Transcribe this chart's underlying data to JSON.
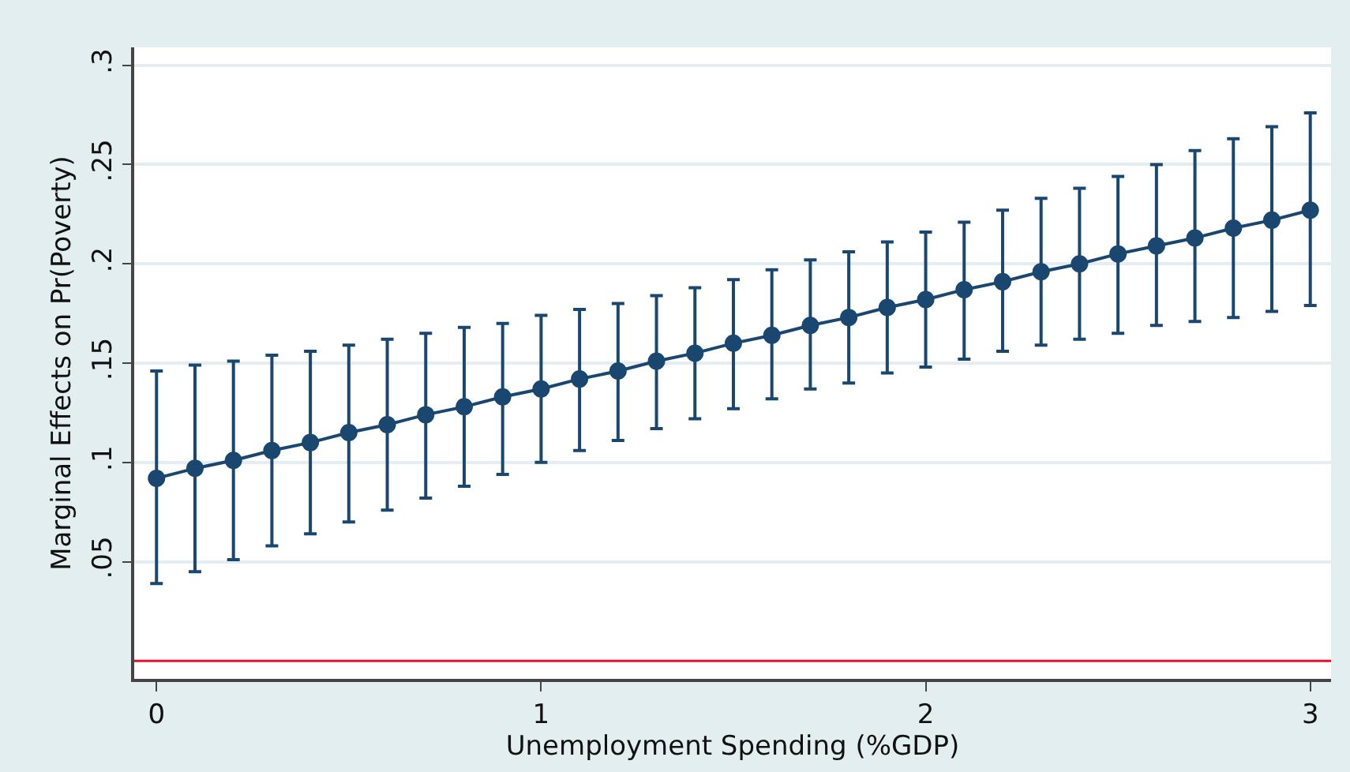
{
  "chart_data": {
    "type": "line",
    "xlabel": "Unemployment Spending (%GDP)",
    "ylabel": "Marginal Effects on Pr(Poverty)",
    "x": [
      0,
      0.1,
      0.2,
      0.3,
      0.4,
      0.5,
      0.6,
      0.7,
      0.8,
      0.9,
      1,
      1.1,
      1.2,
      1.3,
      1.4,
      1.5,
      1.6,
      1.7,
      1.8,
      1.9,
      2,
      2.1,
      2.2,
      2.3,
      2.4,
      2.5,
      2.6,
      2.7,
      2.8,
      2.9,
      3
    ],
    "series": [
      {
        "color": "#1a476f",
        "line_style": "solid",
        "marker": "circle",
        "values": [
          0.092,
          0.097,
          0.101,
          0.106,
          0.11,
          0.115,
          0.119,
          0.124,
          0.128,
          0.133,
          0.137,
          0.142,
          0.146,
          0.151,
          0.155,
          0.16,
          0.164,
          0.169,
          0.173,
          0.178,
          0.182,
          0.187,
          0.191,
          0.196,
          0.2,
          0.205,
          0.209,
          0.213,
          0.218,
          0.222,
          0.227
        ],
        "errors": [
          [
            0.039,
            0.146
          ],
          [
            0.045,
            0.149
          ],
          [
            0.051,
            0.151
          ],
          [
            0.058,
            0.154
          ],
          [
            0.064,
            0.156
          ],
          [
            0.07,
            0.159
          ],
          [
            0.076,
            0.162
          ],
          [
            0.082,
            0.165
          ],
          [
            0.088,
            0.168
          ],
          [
            0.094,
            0.17
          ],
          [
            0.1,
            0.174
          ],
          [
            0.106,
            0.177
          ],
          [
            0.111,
            0.18
          ],
          [
            0.117,
            0.184
          ],
          [
            0.122,
            0.188
          ],
          [
            0.127,
            0.192
          ],
          [
            0.132,
            0.197
          ],
          [
            0.137,
            0.202
          ],
          [
            0.14,
            0.206
          ],
          [
            0.145,
            0.211
          ],
          [
            0.148,
            0.216
          ],
          [
            0.152,
            0.221
          ],
          [
            0.156,
            0.227
          ],
          [
            0.159,
            0.233
          ],
          [
            0.162,
            0.238
          ],
          [
            0.165,
            0.244
          ],
          [
            0.169,
            0.25
          ],
          [
            0.171,
            0.257
          ],
          [
            0.173,
            0.263
          ],
          [
            0.176,
            0.269
          ],
          [
            0.179,
            0.276
          ]
        ]
      }
    ],
    "xlim": [
      -0.058,
      3.054
    ],
    "ylim": [
      -0.009,
      0.309
    ],
    "xticks": [
      0,
      1,
      2,
      3
    ],
    "yticks": [
      {
        "value": 0.05,
        "label": ".05"
      },
      {
        "value": 0.1,
        "label": ".1"
      },
      {
        "value": 0.15,
        "label": ".15"
      },
      {
        "value": 0.2,
        "label": ".2"
      },
      {
        "value": 0.25,
        "label": ".25"
      },
      {
        "value": 0.3,
        "label": ".3"
      }
    ],
    "grid": "y",
    "ref_lines": [
      {
        "axis": "y",
        "value": 0,
        "color": "#e8102e"
      }
    ]
  }
}
